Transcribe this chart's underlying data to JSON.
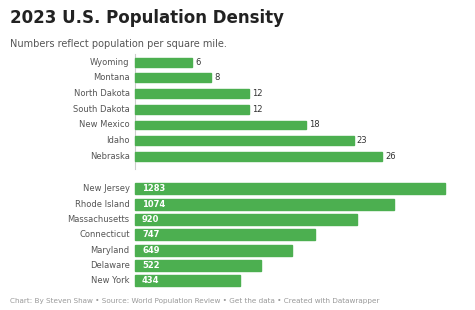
{
  "title": "2023 U.S. Population Density",
  "subtitle": "Numbers reflect population per square mile.",
  "footer": "Chart: By Steven Shaw • Source: World Population Review • Get the data • Created with Datawrapper",
  "low_density": {
    "states": [
      "Wyoming",
      "Montana",
      "North Dakota",
      "South Dakota",
      "New Mexico",
      "Idaho",
      "Nebraska"
    ],
    "values": [
      6,
      8,
      12,
      12,
      18,
      23,
      26
    ]
  },
  "high_density": {
    "states": [
      "New Jersey",
      "Rhode Island",
      "Massachusetts",
      "Connecticut",
      "Maryland",
      "Delaware",
      "New York"
    ],
    "values": [
      1283,
      1074,
      920,
      747,
      649,
      522,
      434
    ]
  },
  "bar_color": "#4caf50",
  "title_color": "#222222",
  "subtitle_color": "#555555",
  "footer_color": "#999999",
  "bg_color": "#ffffff",
  "max_low": 35,
  "max_high": 1380
}
